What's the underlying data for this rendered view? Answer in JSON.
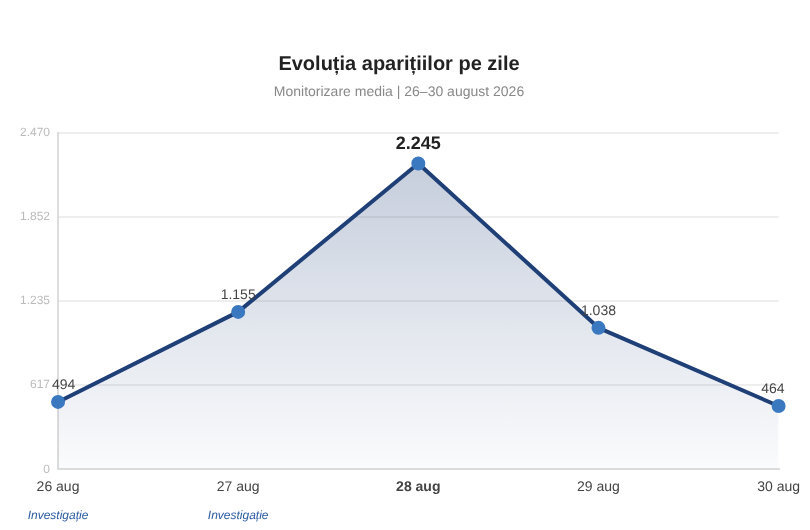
{
  "chart_data": {
    "type": "area",
    "title": "Evoluția aparițiilor pe zile",
    "subtitle": "Monitorizare media | 26–30 august 2026",
    "categories": [
      "26 aug",
      "27 aug",
      "28 aug",
      "29 aug",
      "30 aug"
    ],
    "series": [
      {
        "color": "#1f3f77",
        "values": [
          494,
          1155,
          2245,
          1038,
          464
        ],
        "value_labels": [
          "494",
          "1.155",
          "2.245",
          "1.038",
          "464"
        ]
      }
    ],
    "ylim": [
      0,
      2470
    ],
    "yticks": [
      0,
      {
        "value": 617,
        "label": "617"
      },
      {
        "value": 1235,
        "label": "1.235"
      },
      {
        "value": 1852,
        "label": "1.852"
      },
      {
        "value": 2470,
        "label": "2.470"
      }
    ],
    "grid": "y",
    "marker": "circle",
    "legend": false,
    "annotations": [
      "Investigație",
      "Investigație"
    ]
  }
}
